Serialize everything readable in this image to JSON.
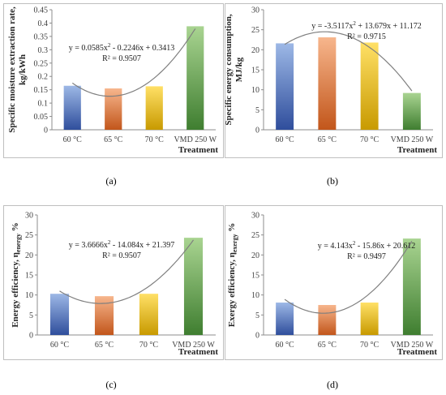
{
  "bar_gradients": [
    {
      "top": "#9DB8E6",
      "bottom": "#2F4E9C"
    },
    {
      "top": "#F7B68D",
      "bottom": "#C2561B"
    },
    {
      "top": "#FFE066",
      "bottom": "#C89A00"
    },
    {
      "top": "#A9D491",
      "bottom": "#3F7E30"
    }
  ],
  "trend_color": "#7F7F7F",
  "chart_data": [
    {
      "type": "bar",
      "panel_label": "(a)",
      "categories": [
        "60 °C",
        "65 °C",
        "70 °C",
        "VMD 250 W"
      ],
      "values": [
        0.165,
        0.155,
        0.163,
        0.388
      ],
      "xlabel": "Treatment",
      "ylabel_line1": "Specific moisture extraction rate,",
      "ylabel_line2": "kg/kWh",
      "ylim": [
        0,
        0.45
      ],
      "yticks": [
        0,
        0.05,
        0.1,
        0.15,
        0.2,
        0.25,
        0.3,
        0.35,
        0.4,
        0.45
      ],
      "ytick_labels": [
        "0",
        "0.05",
        "0.1",
        "0.15",
        "0.2",
        "0.25",
        "0.3",
        "0.35",
        "0.4",
        "0.45"
      ],
      "trendline": {
        "a": 0.0585,
        "b": -0.2246,
        "c": 0.3413
      },
      "equation": {
        "p1": "y = 0.0585x",
        "p2": " - 0.2246x + 0.3413"
      },
      "r2": "R² = 0.9507"
    },
    {
      "type": "bar",
      "panel_label": "(b)",
      "categories": [
        "60 °C",
        "65 °C",
        "70 °C",
        "VMD 250 W"
      ],
      "values": [
        21.6,
        23.1,
        21.8,
        9.2
      ],
      "xlabel": "Treatment",
      "ylabel_line1": "Specific energy consumption,",
      "ylabel_line2": "MJ/kg",
      "ylim": [
        0,
        30
      ],
      "yticks": [
        0,
        5,
        10,
        15,
        20,
        25,
        30
      ],
      "ytick_labels": [
        "0",
        "5",
        "10",
        "15",
        "20",
        "25",
        "30"
      ],
      "trendline": {
        "a": -3.5117,
        "b": 13.679,
        "c": 11.172
      },
      "equation": {
        "p1": "y = -3.5117x",
        "p2": " + 13.679x + 11.172"
      },
      "r2": "R² = 0.9715"
    },
    {
      "type": "bar",
      "panel_label": "(c)",
      "categories": [
        "60 °C",
        "65 °C",
        "70 °C",
        "VMD 250 W"
      ],
      "values": [
        10.3,
        9.7,
        10.3,
        24.3
      ],
      "xlabel": "Treatment",
      "ylabel_main": "Energy efficiency, η",
      "ylabel_sub": "energy",
      "ylabel_tail": " %",
      "ylim": [
        0,
        30
      ],
      "yticks": [
        0,
        5,
        10,
        15,
        20,
        25,
        30
      ],
      "ytick_labels": [
        "0",
        "5",
        "10",
        "15",
        "20",
        "25",
        "30"
      ],
      "trendline": {
        "a": 3.6666,
        "b": -14.084,
        "c": 21.397
      },
      "equation": {
        "p1": "y = 3.6666x",
        "p2": " - 14.084x + 21.397"
      },
      "r2": "R² = 0.9507"
    },
    {
      "type": "bar",
      "panel_label": "(d)",
      "categories": [
        "60 °C",
        "65 °C",
        "70 °C",
        "VMD 250 W"
      ],
      "values": [
        8.1,
        7.5,
        8.1,
        24.1
      ],
      "xlabel": "Treatment",
      "ylabel_main": "Exergy efficiency, η",
      "ylabel_sub": "exergy",
      "ylabel_tail": " %",
      "ylim": [
        0,
        30
      ],
      "yticks": [
        0,
        5,
        10,
        15,
        20,
        25,
        30
      ],
      "ytick_labels": [
        "0",
        "5",
        "10",
        "15",
        "20",
        "25",
        "30"
      ],
      "trendline": {
        "a": 4.143,
        "b": -15.86,
        "c": 20.612
      },
      "equation": {
        "p1": "y = 4.143x",
        "p2": " - 15.86x + 20.612"
      },
      "r2": "R² = 0.9497"
    }
  ]
}
